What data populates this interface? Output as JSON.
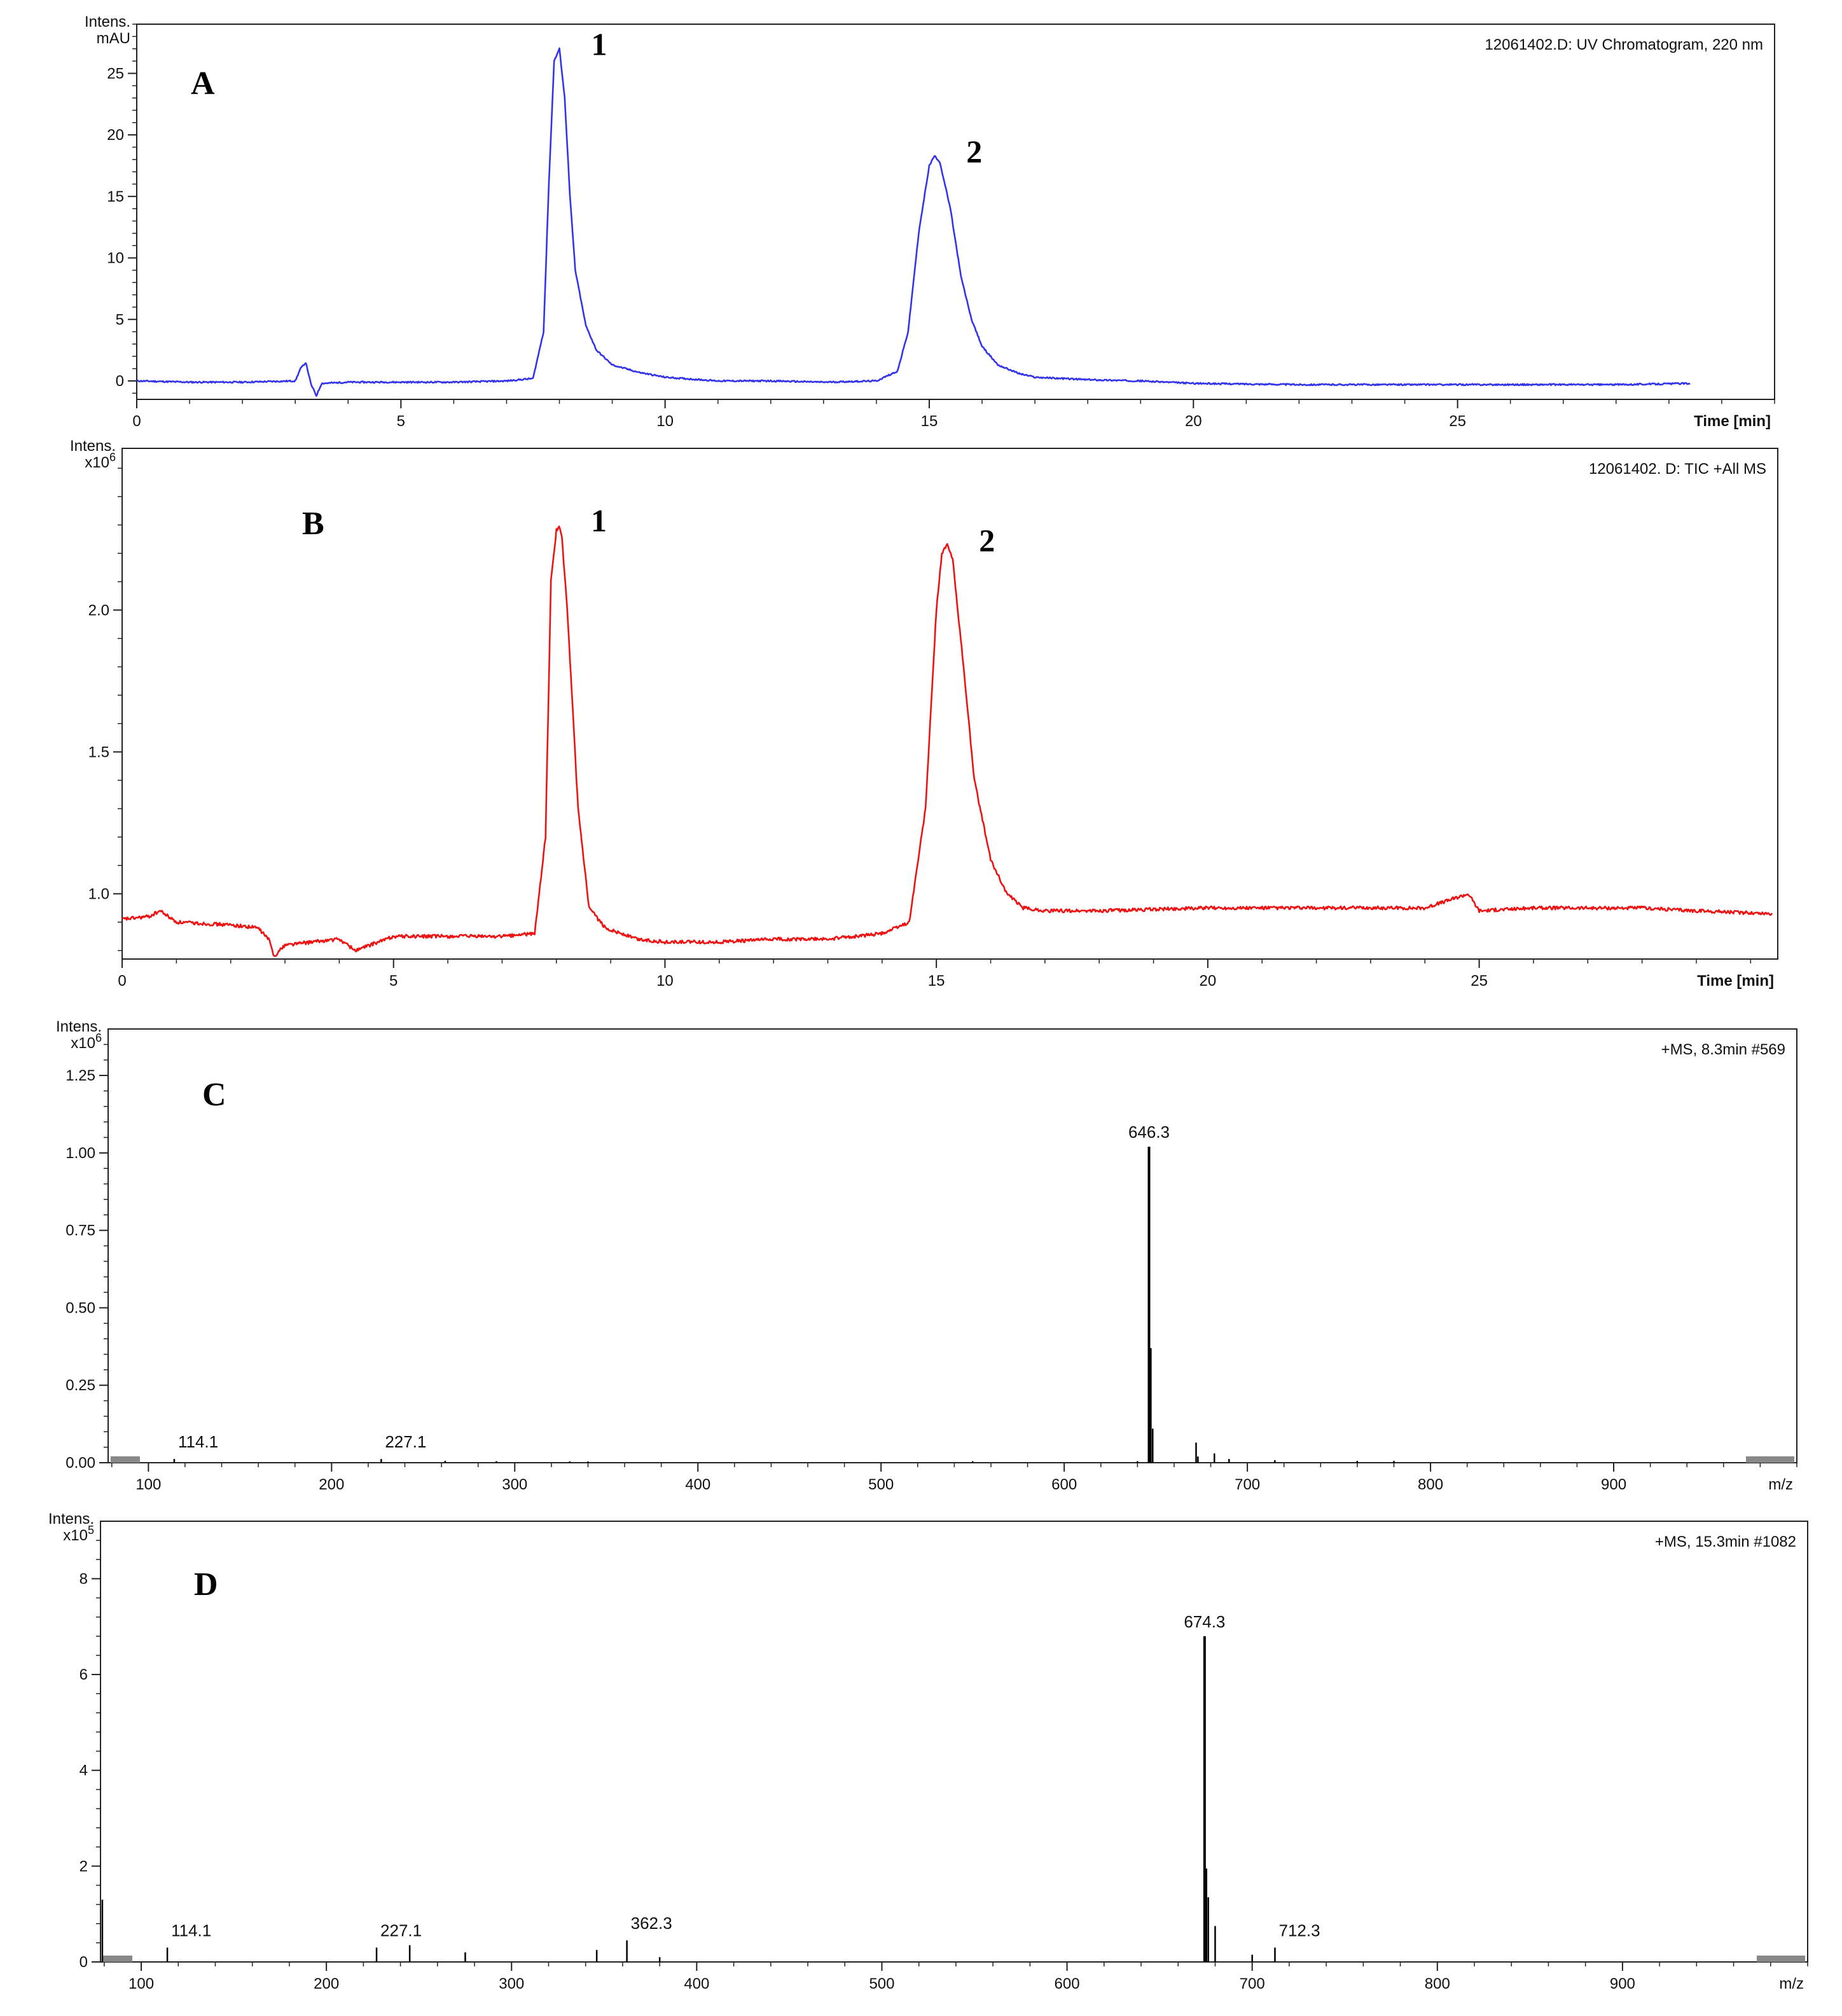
{
  "colors": {
    "uv_trace": "#3333ee",
    "tic_trace": "#ee1111",
    "ms_bars": "#000000",
    "marker_gray": "#888888"
  },
  "chart_data": [
    {
      "type": "line",
      "panel_label": "A",
      "source_label": "12061402.D: UV Chromatogram, 220 nm",
      "ylabel": "Intens.",
      "yunit": "mAU",
      "xlabel": "Time [min]",
      "xlim": [
        0,
        31
      ],
      "ylim": [
        -1.5,
        29
      ],
      "xticks": [
        0,
        5,
        10,
        15,
        20,
        25
      ],
      "yticks": [
        0,
        5,
        10,
        15,
        20,
        25
      ],
      "ytick_labels": [
        "0",
        "5",
        "10",
        "15",
        "20",
        "25"
      ],
      "series": [
        {
          "color": "#3333ee",
          "x": [
            0,
            1,
            2,
            3,
            3.1,
            3.2,
            3.3,
            3.4,
            3.5,
            4,
            5,
            6,
            7,
            7.5,
            7.7,
            7.8,
            7.9,
            8.0,
            8.1,
            8.2,
            8.3,
            8.5,
            8.7,
            9.0,
            9.5,
            10,
            11,
            12,
            13,
            14,
            14.4,
            14.6,
            14.8,
            15.0,
            15.1,
            15.2,
            15.4,
            15.6,
            15.8,
            16.0,
            16.3,
            16.7,
            17,
            18,
            19,
            20,
            22,
            24,
            26,
            28,
            29.4
          ],
          "y": [
            0.0,
            -0.1,
            -0.1,
            0.0,
            1.0,
            1.5,
            -0.3,
            -1.2,
            -0.2,
            -0.1,
            -0.1,
            -0.1,
            0.0,
            0.2,
            4.0,
            16.0,
            26.0,
            27.0,
            23.0,
            15.0,
            9.0,
            4.5,
            2.5,
            1.3,
            0.7,
            0.3,
            0.0,
            0.0,
            -0.1,
            0.0,
            0.8,
            4.0,
            12.0,
            17.5,
            18.3,
            17.8,
            14.0,
            8.5,
            5.0,
            2.8,
            1.3,
            0.6,
            0.3,
            0.1,
            0.0,
            -0.2,
            -0.3,
            -0.3,
            -0.3,
            -0.3,
            -0.2
          ]
        }
      ],
      "annotations": [
        {
          "text": "1",
          "x": 8.0,
          "y": 27.0
        },
        {
          "text": "2",
          "x": 15.1,
          "y": 18.3
        }
      ]
    },
    {
      "type": "line",
      "panel_label": "B",
      "source_label": "12061402.  D: TIC +All MS",
      "ylabel": "Intens.",
      "yunit": "x10",
      "yunit_exp": "6",
      "xlabel": "Time [min]",
      "xlim": [
        0,
        30.5
      ],
      "ylim": [
        0.77,
        2.57
      ],
      "xticks": [
        0,
        5,
        10,
        15,
        20,
        25
      ],
      "yticks": [
        1.0,
        1.5,
        2.0
      ],
      "ytick_labels": [
        "1.0",
        "1.5",
        "2.0"
      ],
      "series": [
        {
          "color": "#ee1111",
          "x": [
            0,
            0.5,
            0.7,
            1,
            2,
            2.5,
            2.7,
            2.8,
            3,
            4,
            4.3,
            5,
            6,
            7,
            7.6,
            7.8,
            7.9,
            8.0,
            8.05,
            8.1,
            8.2,
            8.4,
            8.6,
            8.9,
            9.5,
            10,
            11,
            12,
            13,
            14,
            14.5,
            14.8,
            15.0,
            15.1,
            15.2,
            15.3,
            15.5,
            15.7,
            16.0,
            16.3,
            16.6,
            17,
            18,
            20,
            22,
            24,
            24.8,
            25,
            26,
            28,
            29,
            30.4
          ],
          "y": [
            0.91,
            0.92,
            0.94,
            0.9,
            0.89,
            0.88,
            0.84,
            0.78,
            0.82,
            0.84,
            0.8,
            0.85,
            0.85,
            0.85,
            0.86,
            1.2,
            2.1,
            2.28,
            2.3,
            2.26,
            2.0,
            1.3,
            0.95,
            0.88,
            0.84,
            0.83,
            0.83,
            0.84,
            0.84,
            0.86,
            0.9,
            1.3,
            2.0,
            2.2,
            2.23,
            2.18,
            1.8,
            1.4,
            1.12,
            1.0,
            0.95,
            0.94,
            0.94,
            0.95,
            0.95,
            0.95,
            1.0,
            0.94,
            0.95,
            0.95,
            0.94,
            0.93
          ]
        }
      ],
      "annotations": [
        {
          "text": "1",
          "x": 8.05,
          "y": 2.3
        },
        {
          "text": "2",
          "x": 15.2,
          "y": 2.23
        }
      ]
    },
    {
      "type": "bar",
      "panel_label": "C",
      "source_label": "+MS, 8.3min #569",
      "ylabel": "Intens.",
      "yunit": "x10",
      "yunit_exp": "6",
      "xlabel": "m/z",
      "xlim": [
        78,
        1000
      ],
      "ylim": [
        0,
        1.4
      ],
      "xticks": [
        100,
        200,
        300,
        400,
        500,
        600,
        700,
        800,
        900
      ],
      "yticks": [
        0,
        0.25,
        0.5,
        0.75,
        1.0,
        1.25
      ],
      "ytick_labels": [
        "0.00",
        "0.25",
        "0.50",
        "0.75",
        "1.00",
        "1.25"
      ],
      "peaks": {
        "mz": [
          114.1,
          227.1,
          262,
          290,
          330,
          340,
          550,
          640,
          646.3,
          647.3,
          648.3,
          672,
          673,
          682,
          690,
          715,
          760,
          780
        ],
        "intensity": [
          0.012,
          0.012,
          0.006,
          0.005,
          0.004,
          0.004,
          0.005,
          0.005,
          1.02,
          0.37,
          0.11,
          0.065,
          0.02,
          0.03,
          0.012,
          0.008,
          0.006,
          0.006
        ]
      },
      "peak_labels": [
        {
          "text": "646.3",
          "mz": 646.3,
          "intensity": 1.02
        },
        {
          "text": "114.1",
          "mz": 114.1,
          "intensity": 0.012
        },
        {
          "text": "227.1",
          "mz": 227.1,
          "intensity": 0.012
        }
      ]
    },
    {
      "type": "bar",
      "panel_label": "D",
      "source_label": "+MS, 15.3min #1082",
      "ylabel": "Intens.",
      "yunit": "x10",
      "yunit_exp": "5",
      "xlabel": "m/z",
      "xlim": [
        78,
        1000
      ],
      "ylim": [
        0,
        9.2
      ],
      "xticks": [
        100,
        200,
        300,
        400,
        500,
        600,
        700,
        800,
        900
      ],
      "yticks": [
        0,
        2,
        4,
        6,
        8
      ],
      "ytick_labels": [
        "0",
        "2",
        "4",
        "6",
        "8"
      ],
      "peaks": {
        "mz": [
          79,
          114.1,
          227.1,
          245,
          275,
          346,
          362.3,
          380,
          674.3,
          675.3,
          676.3,
          680,
          700,
          712.3
        ],
        "intensity": [
          1.3,
          0.3,
          0.3,
          0.35,
          0.2,
          0.25,
          0.45,
          0.1,
          6.8,
          1.95,
          1.35,
          0.75,
          0.15,
          0.3
        ]
      },
      "peak_labels": [
        {
          "text": "674.3",
          "mz": 674.3,
          "intensity": 6.8
        },
        {
          "text": "114.1",
          "mz": 114.1,
          "intensity": 0.3
        },
        {
          "text": "227.1",
          "mz": 227.1,
          "intensity": 0.3
        },
        {
          "text": "362.3",
          "mz": 362.3,
          "intensity": 0.45
        },
        {
          "text": "712.3",
          "mz": 712.3,
          "intensity": 0.3
        }
      ]
    }
  ]
}
